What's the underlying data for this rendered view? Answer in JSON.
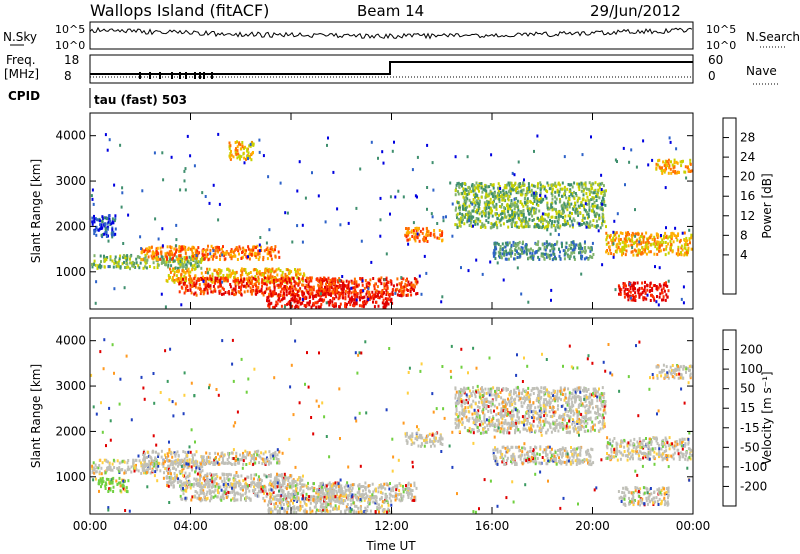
{
  "header": {
    "title": "Wallops Island (fitACF)",
    "beam": "Beam 14",
    "date": "29/Jun/2012"
  },
  "top_panels": {
    "nsky": {
      "label": "N.Sky",
      "ticks": [
        "10^5",
        "10^0"
      ]
    },
    "nsearch": {
      "label": "N.Search",
      "ticks": [
        "10^5",
        "10^0"
      ]
    },
    "freq": {
      "label": "Freq.",
      "unit": "[MHz]",
      "ticks": [
        "18",
        "8"
      ]
    },
    "nave": {
      "label": "Nave",
      "ticks": [
        "60",
        "0"
      ]
    },
    "cpid": {
      "label": "CPID",
      "value": "tau (fast) 503"
    }
  },
  "colorbars": {
    "power": {
      "label": "Power [dB]",
      "ticks": [
        "28",
        "24",
        "20",
        "16",
        "12",
        "8",
        "4"
      ],
      "colors": [
        "#0000e0",
        "#2d62c8",
        "#3f8f6e",
        "#7fb26b",
        "#c8d200",
        "#ffb000",
        "#ff7000",
        "#ff3000",
        "#e00000"
      ]
    },
    "velocity": {
      "label": "Velocity [m s⁻¹]",
      "ticks": [
        "200",
        "100",
        "50",
        "15",
        "-15",
        "-50",
        "-100",
        "-200"
      ],
      "colors": [
        "#2040c0",
        "#3080a0",
        "#3a9a60",
        "#70d040",
        "#c0c0b8",
        "#ffd040",
        "#ff9a20",
        "#ff5010",
        "#e00000"
      ]
    }
  },
  "chart_data": [
    {
      "type": "heatmap",
      "name": "power-panel",
      "ylabel": "Slant Range [km]",
      "yticks": [
        "4000",
        "3000",
        "2000",
        "1000"
      ],
      "xticks": [
        "00:00",
        "04:00",
        "08:00",
        "12:00",
        "16:00",
        "20:00",
        "00:00"
      ],
      "ylim": [
        180,
        4500
      ],
      "xlim_hours": [
        0,
        24
      ],
      "bands": [
        {
          "t0": 0.0,
          "t1": 4.5,
          "r0": 1100,
          "r1": 1400,
          "level": 3
        },
        {
          "t0": 2.0,
          "t1": 7.5,
          "r0": 1300,
          "r1": 1600,
          "level": 6
        },
        {
          "t0": 3.0,
          "t1": 8.5,
          "r0": 800,
          "r1": 1100,
          "level": 5
        },
        {
          "t0": 3.5,
          "t1": 10.0,
          "r0": 500,
          "r1": 900,
          "level": 7
        },
        {
          "t0": 7.0,
          "t1": 12.0,
          "r0": 200,
          "r1": 600,
          "level": 8
        },
        {
          "t0": 9.0,
          "t1": 13.0,
          "r0": 500,
          "r1": 900,
          "level": 7
        },
        {
          "t0": 12.5,
          "t1": 14.0,
          "r0": 1700,
          "r1": 2000,
          "level": 6
        },
        {
          "t0": 14.5,
          "t1": 20.5,
          "r0": 2000,
          "r1": 3000,
          "level": 3
        },
        {
          "t0": 16.0,
          "t1": 20.0,
          "r0": 1300,
          "r1": 1700,
          "level": 2
        },
        {
          "t0": 20.5,
          "t1": 24.0,
          "r0": 1400,
          "r1": 1900,
          "level": 5
        },
        {
          "t0": 21.0,
          "t1": 23.0,
          "r0": 400,
          "r1": 800,
          "level": 8
        },
        {
          "t0": 22.5,
          "t1": 24.0,
          "r0": 3200,
          "r1": 3500,
          "level": 5
        },
        {
          "t0": 0.0,
          "t1": 1.0,
          "r0": 1800,
          "r1": 2300,
          "level": 1
        },
        {
          "t0": 5.5,
          "t1": 6.5,
          "r0": 3500,
          "r1": 3900,
          "level": 5
        }
      ]
    },
    {
      "type": "heatmap",
      "name": "velocity-panel",
      "ylabel": "Slant Range [km]",
      "yticks": [
        "4000",
        "3000",
        "2000",
        "1000"
      ],
      "xticks": [
        "00:00",
        "04:00",
        "08:00",
        "12:00",
        "16:00",
        "20:00",
        "00:00"
      ],
      "xlabel": "Time UT",
      "ylim": [
        180,
        4500
      ],
      "xlim_hours": [
        0,
        24
      ],
      "bands": [
        {
          "t0": 0.0,
          "t1": 4.5,
          "r0": 1100,
          "r1": 1400,
          "level": 4
        },
        {
          "t0": 0.3,
          "t1": 1.5,
          "r0": 700,
          "r1": 1000,
          "level": 3
        },
        {
          "t0": 2.0,
          "t1": 7.5,
          "r0": 1300,
          "r1": 1600,
          "level": 4
        },
        {
          "t0": 3.0,
          "t1": 8.5,
          "r0": 800,
          "r1": 1100,
          "level": 4
        },
        {
          "t0": 3.5,
          "t1": 10.0,
          "r0": 500,
          "r1": 900,
          "level": 4
        },
        {
          "t0": 7.0,
          "t1": 12.0,
          "r0": 200,
          "r1": 600,
          "level": 4
        },
        {
          "t0": 9.0,
          "t1": 13.0,
          "r0": 500,
          "r1": 900,
          "level": 4
        },
        {
          "t0": 12.5,
          "t1": 14.0,
          "r0": 1700,
          "r1": 2000,
          "level": 4
        },
        {
          "t0": 14.5,
          "t1": 20.5,
          "r0": 2000,
          "r1": 3000,
          "level": 4
        },
        {
          "t0": 16.0,
          "t1": 20.0,
          "r0": 1300,
          "r1": 1700,
          "level": 4
        },
        {
          "t0": 20.5,
          "t1": 24.0,
          "r0": 1400,
          "r1": 1900,
          "level": 4
        },
        {
          "t0": 21.0,
          "t1": 23.0,
          "r0": 400,
          "r1": 800,
          "level": 4
        },
        {
          "t0": 22.5,
          "t1": 24.0,
          "r0": 3200,
          "r1": 3500,
          "level": 4
        }
      ]
    }
  ]
}
